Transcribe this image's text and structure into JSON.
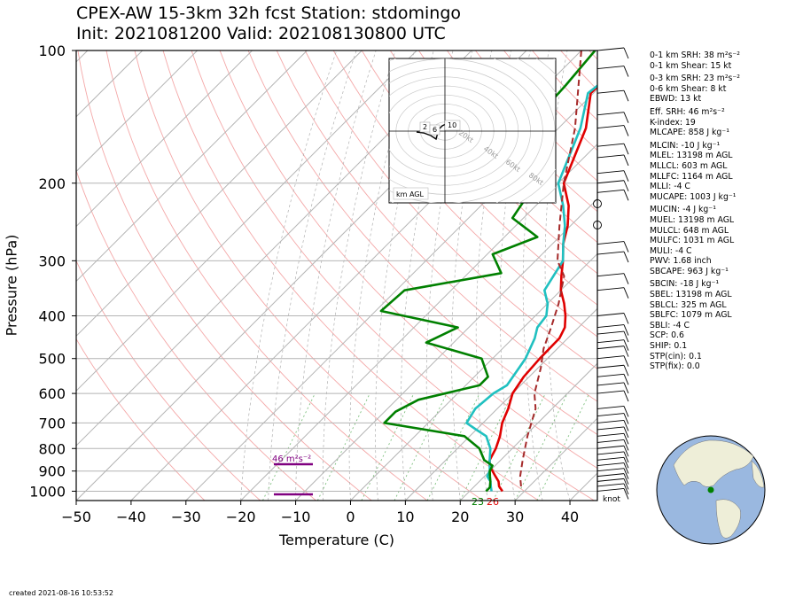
{
  "title": {
    "line1": "CPEX-AW 15-3km  32h fcst  Station: stdomingo",
    "line2": "Init: 2021081200  Valid: 202108130800 UTC"
  },
  "footer": {
    "created": "created 2021-08-16 10:53:52"
  },
  "hodograph": {
    "label": "km AGL",
    "height_labels": [
      "2",
      "6",
      "10"
    ],
    "ring_labels": [
      "20kt",
      "40kt",
      "60kt",
      "80kt"
    ]
  },
  "wind_units": "knot",
  "srh_label": "46 m²s⁻²",
  "surface_labels": {
    "dewpoint": "23",
    "temperature": "26"
  },
  "stats": [
    "0-1 km SRH: 38 m²s⁻²",
    "0-1 km Shear: 15 kt",
    "",
    "0-3 km SRH: 23 m²s⁻²",
    "0-6 km Shear: 8 kt",
    "EBWD: 13 kt",
    "",
    "Eff. SRH: 46 m²s⁻²",
    "K-index: 19",
    "MLCAPE: 858 J kg⁻¹",
    "",
    "MLCIN: -10 J kg⁻¹",
    "MLEL: 13198 m AGL",
    "MLLCL: 603 m AGL",
    "MLLFC: 1164 m AGL",
    "MLLI: -4 C",
    "MUCAPE: 1003 J kg⁻¹",
    "",
    "MUCIN: -4 J kg⁻¹",
    "MUEL: 13198 m AGL",
    "MULCL: 648 m AGL",
    "MULFC: 1031 m AGL",
    "MULI: -4 C",
    "PWV: 1.68 inch",
    "SBCAPE: 963 J kg⁻¹",
    "",
    "SBCIN: -18 J kg⁻¹",
    "SBEL: 13198 m AGL",
    "SBLCL: 325 m AGL",
    "SBLFC: 1079 m AGL",
    "SBLI: -4 C",
    "SCP: 0.6",
    "SHIP: 0.1",
    "STP(cin): 0.1",
    "STP(fix): 0.0"
  ],
  "chart_data": {
    "type": "line",
    "title": "CPEX-AW 15-3km  32h fcst  Station: stdomingo",
    "xlabel": "Temperature (C)",
    "ylabel": "Pressure (hPa)",
    "xlim": [
      -50,
      45
    ],
    "ylim": [
      1050,
      100
    ],
    "y_scale": "log",
    "x_ticks": [
      -50,
      -40,
      -30,
      -20,
      -10,
      0,
      10,
      20,
      30,
      40
    ],
    "y_ticks": [
      100,
      200,
      300,
      400,
      500,
      600,
      700,
      800,
      900,
      1000
    ],
    "colors": {
      "temperature": "#e00000",
      "dewpoint": "#008000",
      "wetbulb": "#20c0c0",
      "parcel": "#a52a2a",
      "srh": "#800080"
    },
    "series": [
      {
        "name": "",
        "color": "#e00000",
        "x": [
          26,
          24.5,
          23.5,
          22,
          20.5,
          19,
          18,
          17,
          15.5,
          13.5,
          12,
          10,
          9,
          8.6,
          8.5,
          7.5,
          5.5,
          3,
          0,
          -2.5,
          -5,
          -8,
          -10.5,
          -14,
          -19,
          -25,
          -30.5,
          -30
        ],
        "y": [
          1000,
          975,
          950,
          925,
          900,
          875,
          850,
          800,
          750,
          700,
          650,
          600,
          550,
          500,
          450,
          425,
          400,
          375,
          350,
          325,
          300,
          275,
          250,
          225,
          200,
          150,
          125,
          100
        ]
      },
      {
        "name": "",
        "color": "#20c0c0",
        "x": [
          24,
          23,
          22,
          20.5,
          20,
          19,
          18,
          16,
          13,
          10,
          7,
          6,
          6.5,
          7.5,
          6,
          4,
          2.5,
          2,
          0,
          -3,
          -5,
          -8,
          -11,
          -15,
          -20,
          -26,
          -31,
          -29
        ],
        "y": [
          1000,
          975,
          950,
          925,
          900,
          875,
          850,
          800,
          750,
          725,
          700,
          650,
          600,
          575,
          500,
          450,
          425,
          400,
          375,
          350,
          300,
          275,
          250,
          225,
          200,
          150,
          125,
          100
        ]
      },
      {
        "name": "",
        "color": "#008000",
        "x": [
          23,
          23,
          22,
          21,
          20,
          19.5,
          17,
          14,
          9,
          -8,
          -8,
          -6,
          2.5,
          2.5,
          -2,
          -15,
          -12,
          -29,
          -28.5,
          -14,
          -19,
          -14,
          -22,
          -23,
          -32,
          -35,
          -36,
          -36.5,
          -37.5
        ],
        "y": [
          1000,
          980,
          950,
          925,
          900,
          875,
          850,
          800,
          750,
          700,
          660,
          620,
          575,
          550,
          500,
          460,
          425,
          390,
          350,
          320,
          290,
          265,
          240,
          220,
          180,
          160,
          140,
          120,
          100
        ]
      },
      {
        "name": "",
        "color": "#a52a2a",
        "style": "dashed",
        "x": [
          28.5,
          26.5,
          24,
          20.5,
          17,
          14,
          10.5,
          7.5,
          5,
          2,
          -2,
          -6,
          -12,
          -19,
          -27,
          -40
        ],
        "y": [
          975,
          925,
          850,
          750,
          650,
          600,
          525,
          475,
          425,
          375,
          325,
          300,
          250,
          200,
          150,
          100
        ]
      }
    ],
    "annotations": [
      "46 m²s⁻²",
      "23",
      "26"
    ]
  }
}
